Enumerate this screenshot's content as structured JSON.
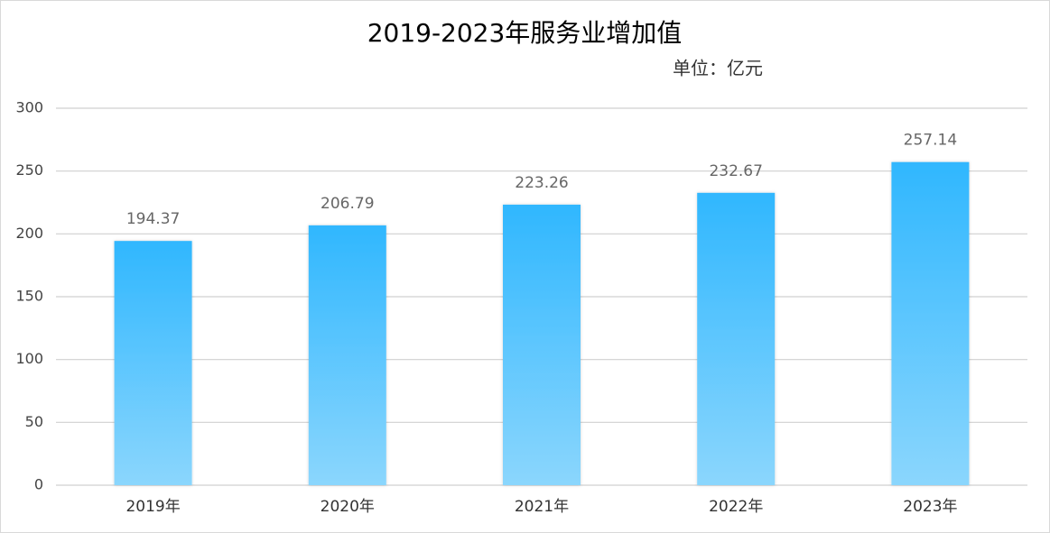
{
  "chart_data": {
    "type": "bar",
    "title": "2019-2023年服务业增加值",
    "subtitle": "单位：亿元",
    "categories": [
      "2019年",
      "2020年",
      "2021年",
      "2022年",
      "2023年"
    ],
    "values": [
      194.37,
      206.79,
      223.26,
      232.67,
      257.14
    ],
    "gradient": [
      "#30b7fe",
      "#8bd6fd"
    ],
    "ylim": [
      0,
      300
    ],
    "yticks": [
      0,
      50,
      100,
      150,
      200,
      250,
      300
    ],
    "grid": true
  }
}
